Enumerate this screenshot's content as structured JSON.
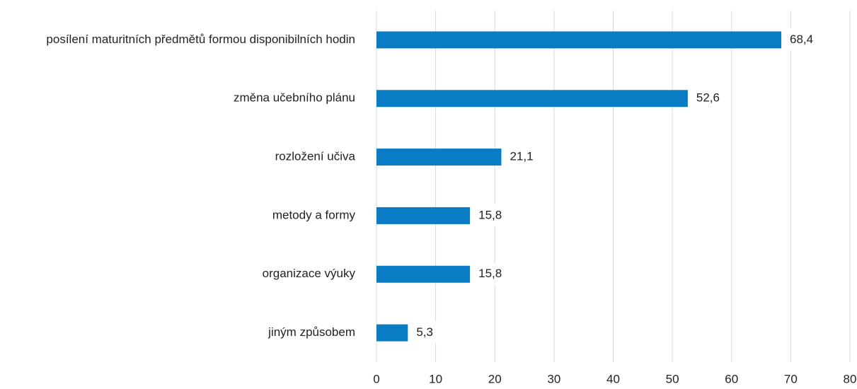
{
  "chart_data": {
    "type": "bar",
    "orientation": "horizontal",
    "categories": [
      "posílení maturitních předmětů formou disponibilních hodin",
      "změna učebního plánu",
      "rozložení učiva",
      "metody a formy",
      "organizace výuky",
      "jiným způsobem"
    ],
    "values": [
      68.4,
      52.6,
      21.1,
      15.8,
      15.8,
      5.3
    ],
    "value_labels": [
      "68,4",
      "52,6",
      "21,1",
      "15,8",
      "15,8",
      "5,3"
    ],
    "color": "#0a7cc4",
    "xlim": [
      0,
      80
    ],
    "xticks": [
      0,
      10,
      20,
      30,
      40,
      50,
      60,
      70,
      80
    ],
    "grid": true
  }
}
